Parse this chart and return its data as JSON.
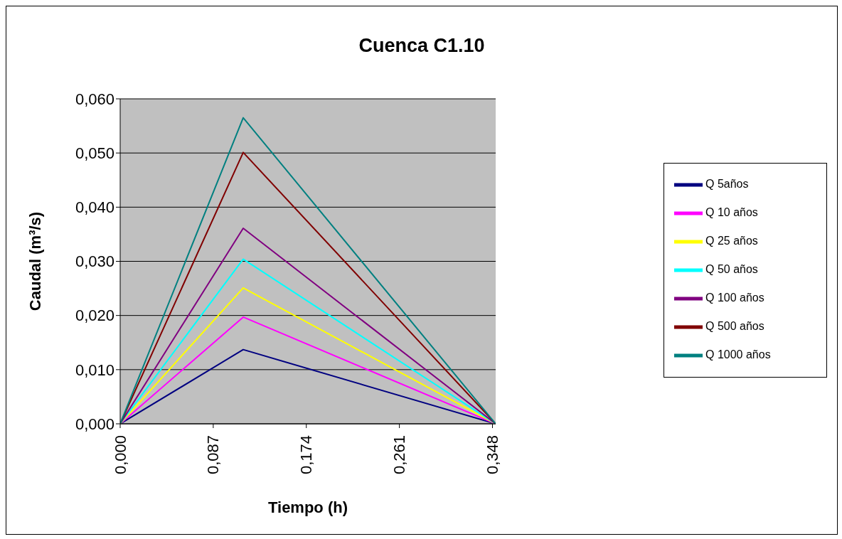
{
  "chart_data": {
    "type": "line",
    "title": "Cuenca C1.10",
    "xlabel": "Tiempo (h)",
    "ylabel": "Caudal (m³/s)",
    "x": [
      0,
      0.115,
      0.351
    ],
    "series": [
      {
        "name": "Q 5años",
        "color": "#000080",
        "values": [
          0,
          0.0137,
          0
        ]
      },
      {
        "name": "Q 10 años",
        "color": "#ff00ff",
        "values": [
          0,
          0.0197,
          0
        ]
      },
      {
        "name": "Q 25 años",
        "color": "#ffff00",
        "values": [
          0,
          0.0251,
          0
        ]
      },
      {
        "name": "Q 50 años",
        "color": "#00ffff",
        "values": [
          0,
          0.0304,
          0
        ]
      },
      {
        "name": "Q 100 años",
        "color": "#800080",
        "values": [
          0,
          0.0361,
          0
        ]
      },
      {
        "name": "Q 500 años",
        "color": "#800000",
        "values": [
          0,
          0.0501,
          0
        ]
      },
      {
        "name": "Q 1000 años",
        "color": "#008080",
        "values": [
          0,
          0.0565,
          0
        ]
      }
    ],
    "xlim": [
      0,
      0.351
    ],
    "xticks": [
      {
        "value": 0,
        "label": "0,000"
      },
      {
        "value": 0.087,
        "label": "0,087"
      },
      {
        "value": 0.174,
        "label": "0,174"
      },
      {
        "value": 0.261,
        "label": "0,261"
      },
      {
        "value": 0.348,
        "label": "0,348"
      }
    ],
    "ylim": [
      0,
      0.06
    ],
    "yticks": [
      {
        "value": 0,
        "label": "0,000"
      },
      {
        "value": 0.01,
        "label": "0,010"
      },
      {
        "value": 0.02,
        "label": "0,020"
      },
      {
        "value": 0.03,
        "label": "0,030"
      },
      {
        "value": 0.04,
        "label": "0,040"
      },
      {
        "value": 0.05,
        "label": "0,050"
      },
      {
        "value": 0.06,
        "label": "0,060"
      }
    ],
    "grid": "y",
    "legend": "right",
    "marker": "none",
    "line_style": "solid"
  }
}
